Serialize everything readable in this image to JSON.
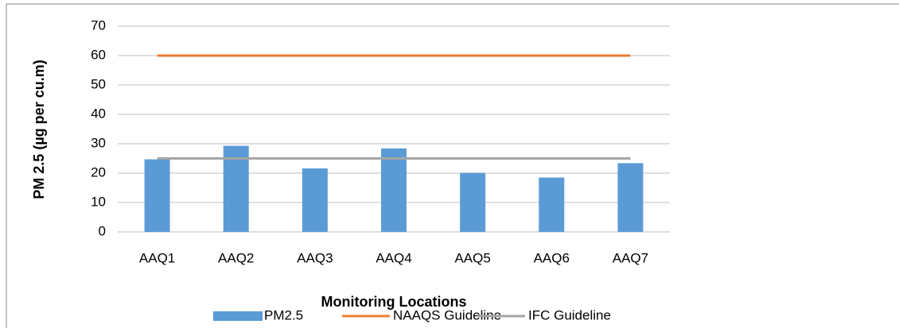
{
  "chart_data": {
    "type": "bar",
    "x_label": "Monitoring Locations",
    "y_label": "PM 2.5 (µg per cu.m)",
    "categories": [
      "AAQ1",
      "AAQ2",
      "AAQ3",
      "AAQ4",
      "AAQ5",
      "AAQ6",
      "AAQ7"
    ],
    "series": [
      {
        "name": "PM2.5",
        "type": "bar",
        "color": "#5b9bd5",
        "values": [
          24.7,
          29.3,
          21.6,
          28.4,
          20.1,
          18.5,
          23.4
        ]
      },
      {
        "name": "NAAQS Guideline",
        "type": "line",
        "color": "#ed7d31",
        "values": [
          60,
          60,
          60,
          60,
          60,
          60,
          60
        ]
      },
      {
        "name": "IFC Guideline",
        "type": "line",
        "color": "#a5a5a5",
        "values": [
          25,
          25,
          25,
          25,
          25,
          25,
          25
        ]
      }
    ],
    "ylim": [
      0,
      70
    ],
    "yticks": [
      0,
      10,
      20,
      30,
      40,
      50,
      60,
      70
    ],
    "grid": true,
    "legend": "bottom"
  }
}
